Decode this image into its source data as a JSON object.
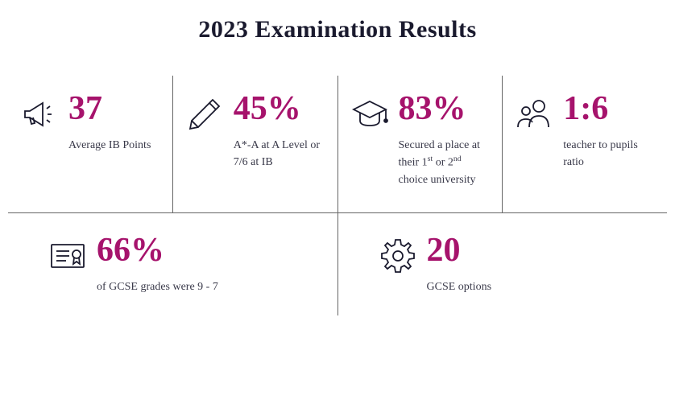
{
  "title": "2023 Examination Results",
  "accent_color": "#a6136c",
  "text_color": "#3a3a4a",
  "title_color": "#1a1a2e",
  "divider_color": "#666666",
  "background_color": "#ffffff",
  "stats_top": [
    {
      "value": "37",
      "label": "Average IB Points",
      "icon": "megaphone"
    },
    {
      "value": "45%",
      "label": "A*-A at A Level or 7/6 at IB",
      "icon": "pencil"
    },
    {
      "value": "83%",
      "label_html": "Secured a place at their 1<sup>st</sup> or 2<sup>nd</sup> choice university",
      "icon": "graduation"
    },
    {
      "value": "1:6",
      "label": "teacher to pupils ratio",
      "icon": "people"
    }
  ],
  "stats_bottom": [
    {
      "value": "66%",
      "label": "of GCSE grades were 9 - 7",
      "icon": "certificate"
    },
    {
      "value": "20",
      "label": "GCSE options",
      "icon": "gear"
    }
  ],
  "typography": {
    "title_fontsize": 30,
    "value_fontsize": 42,
    "label_fontsize": 14,
    "font_family": "Georgia, serif"
  }
}
